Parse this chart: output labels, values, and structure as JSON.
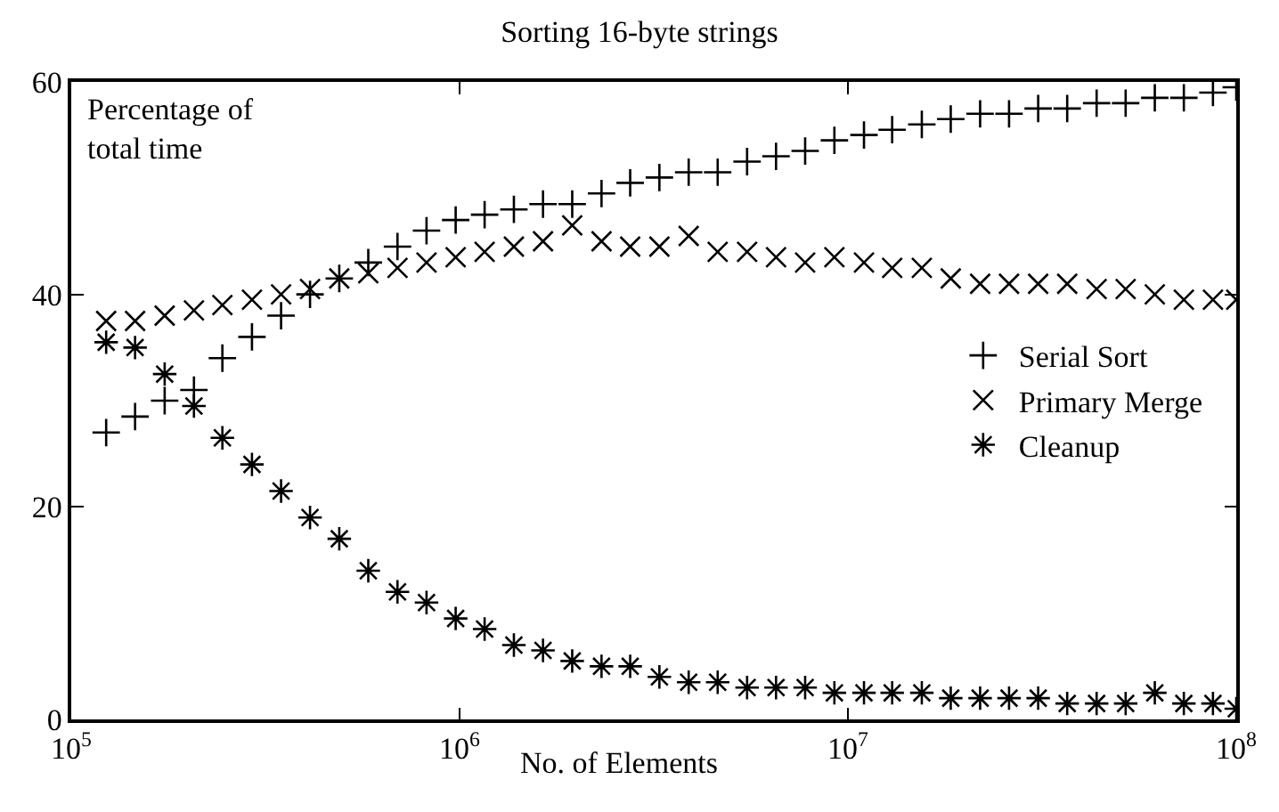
{
  "chart_data": {
    "type": "scatter",
    "title": "Sorting 16-byte strings",
    "xlabel": "No. of Elements",
    "ylabel": "Percentage of\ntotal time",
    "x": [
      123000,
      146000,
      174000,
      207000,
      245000,
      292000,
      347000,
      412000,
      490000,
      582000,
      692000,
      822000,
      977000,
      1160000,
      1380000,
      1640000,
      1950000,
      2320000,
      2750000,
      3270000,
      3890000,
      4620000,
      5500000,
      6530000,
      7760000,
      9230000,
      11000000,
      13000000,
      15500000,
      18400000,
      21900000,
      26000000,
      30900000,
      36700000,
      43700000,
      51900000,
      61700000,
      73300000,
      87100000,
      100000000
    ],
    "series": [
      {
        "name": "Serial Sort",
        "color": "#000000",
        "marker": "cross",
        "values": [
          27,
          28.5,
          30,
          31,
          34,
          36,
          38,
          40,
          41.5,
          43,
          44.5,
          46,
          47,
          47.5,
          48,
          48.5,
          48.5,
          49.5,
          50.5,
          51,
          51.5,
          51.5,
          52.5,
          53,
          53.5,
          54.5,
          55,
          55.5,
          56,
          56.5,
          57,
          57,
          57.5,
          57.5,
          58,
          58,
          58.5,
          58.5,
          59,
          59.5
        ]
      },
      {
        "name": "Primary Merge",
        "color": "#000000",
        "marker": "x",
        "values": [
          37.5,
          37.5,
          38,
          38.5,
          39,
          39.5,
          40,
          40.5,
          41.5,
          42,
          42.5,
          43,
          43.5,
          44,
          44.5,
          45,
          46.5,
          45,
          44.5,
          44.5,
          45.5,
          44,
          44,
          43.5,
          43,
          43.5,
          43,
          42.5,
          42.5,
          41.5,
          41,
          41,
          41,
          41,
          40.5,
          40.5,
          40,
          39.5,
          39.5,
          39.5
        ]
      },
      {
        "name": "Cleanup",
        "color": "#000000",
        "values": [
          35.5,
          35,
          32.5,
          29.5,
          26.5,
          24,
          21.5,
          19,
          17,
          14,
          12,
          11,
          9.5,
          8.5,
          7,
          6.5,
          5.5,
          5,
          5,
          4,
          3.5,
          3.5,
          3,
          3,
          3,
          2.5,
          2.5,
          2.5,
          2.5,
          2,
          2,
          2,
          2,
          1.5,
          1.5,
          1.5,
          2.5,
          1.5,
          1.5,
          1
        ]
      }
    ],
    "log": "x",
    "xlim": [
      100000,
      100000000
    ],
    "xticks": [
      {
        "value": 100000,
        "label": "10$^{5}$"
      },
      {
        "value": 1000000,
        "label": "10$^{6}$"
      },
      {
        "value": 10000000,
        "label": "10$^{7}$"
      },
      {
        "value": 100000000,
        "label": "10$^{8}$"
      }
    ],
    "ylim": [
      0,
      60
    ],
    "yticks": [
      0,
      20,
      40,
      60
    ],
    "grid": false,
    "legend": "right"
  }
}
